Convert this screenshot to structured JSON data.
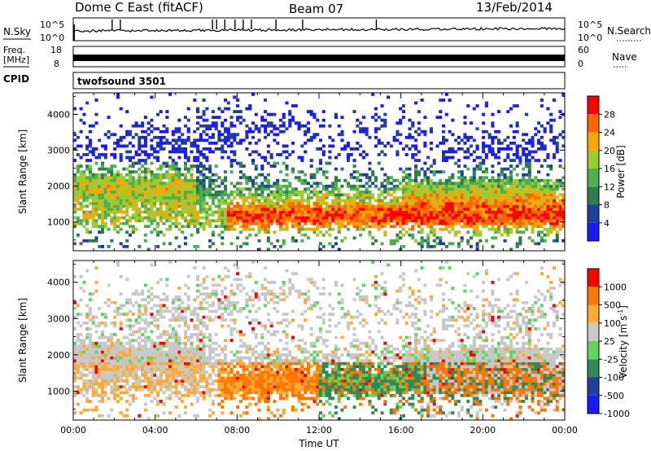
{
  "header": {
    "title": "Dome C East (fitACF)",
    "beam": "Beam 07",
    "date": "13/Feb/2014"
  },
  "panels": {
    "nsky": {
      "label": "N.Sky",
      "top_tick": "10^5",
      "bottom_tick": "10^0",
      "right_top_tick": "10^5",
      "right_bottom_tick": "10^0",
      "right_label": "N.Search"
    },
    "freq": {
      "label_line1": "Freq.",
      "label_line2": "[MHz]",
      "left_top_tick": "18",
      "left_bottom_tick": "8",
      "right_top_tick": "60",
      "right_bottom_tick": "0",
      "right_label": "Nave"
    },
    "cpid": {
      "label": "CPID",
      "value": "twofsound 3501"
    }
  },
  "colors": {
    "power_scale": [
      "#1a1aff",
      "#2040a0",
      "#2e7d4a",
      "#4caf50",
      "#9acd32",
      "#ffa500",
      "#ff6600",
      "#ff0000"
    ],
    "velocity_scale": [
      "#1a1aff",
      "#2040a0",
      "#2e8b57",
      "#5cd65c",
      "#c8c8c8",
      "#ffaa33",
      "#ff7700",
      "#ff0000"
    ]
  },
  "chart_data": [
    {
      "type": "heatmap",
      "name": "Power",
      "ylabel": "Slant Range [km]",
      "xlabel": "",
      "x_ticks": [
        "00:00",
        "04:00",
        "08:00",
        "12:00",
        "16:00",
        "20:00",
        "00:00"
      ],
      "y_ticks": [
        1000,
        2000,
        3000,
        4000
      ],
      "ylim": [
        200,
        4600
      ],
      "xlim_hours": [
        0,
        24
      ],
      "colorbar_label": "Power [dB]",
      "colorbar_ticks": [
        "4",
        "8",
        "12",
        "16",
        "20",
        "24",
        "28"
      ]
    },
    {
      "type": "heatmap",
      "name": "Velocity",
      "ylabel": "Slant Range [km]",
      "xlabel": "Time UT",
      "x_ticks": [
        "00:00",
        "04:00",
        "08:00",
        "12:00",
        "16:00",
        "20:00",
        "00:00"
      ],
      "y_ticks": [
        1000,
        2000,
        3000,
        4000
      ],
      "ylim": [
        200,
        4600
      ],
      "xlim_hours": [
        0,
        24
      ],
      "colorbar_label": "Velocity [m s",
      "colorbar_label_sup": "-1",
      "colorbar_label_close": "]",
      "colorbar_ticks": [
        "1000",
        "500",
        "100",
        "25",
        "-25",
        "-100",
        "-500",
        "-1000"
      ]
    }
  ]
}
